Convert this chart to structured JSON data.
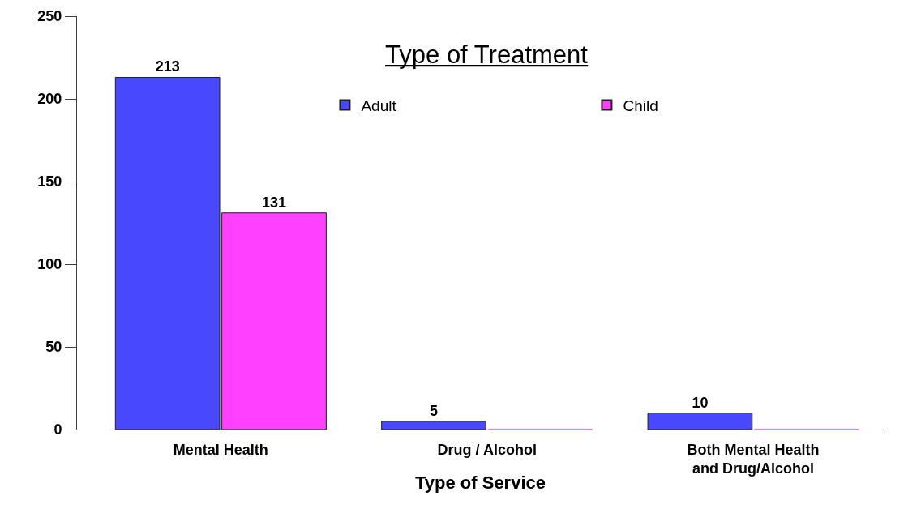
{
  "chart_data": {
    "type": "bar",
    "title": "Type of Treatment",
    "xlabel": "Type of Service",
    "categories": [
      "Mental Health",
      "Drug / Alcohol",
      "Both Mental Health and Drug/Alcohol"
    ],
    "series": [
      {
        "name": "Adult",
        "color": "#4848ff",
        "values": [
          213,
          5,
          10
        ],
        "value_labels": [
          "213",
          "5",
          "10"
        ]
      },
      {
        "name": "Child",
        "color": "#ff40ff",
        "values": [
          131,
          0,
          0
        ],
        "value_labels": [
          "131",
          null,
          null
        ]
      }
    ],
    "ylim": [
      0,
      250
    ],
    "yticks": [
      0,
      50,
      100,
      150,
      200,
      250
    ],
    "legend": "top"
  }
}
